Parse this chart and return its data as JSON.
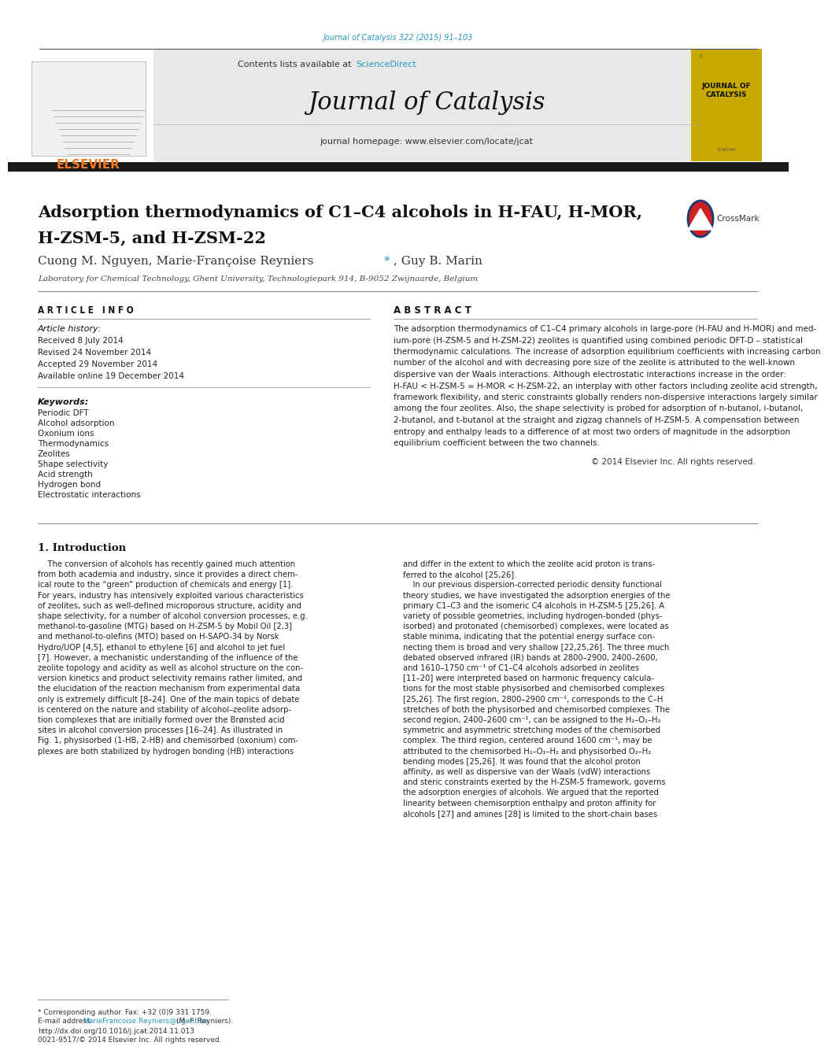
{
  "page_width": 9.92,
  "page_height": 13.23,
  "background_color": "#ffffff",
  "top_journal_ref": "Journal of Catalysis 322 (2015) 91–103",
  "top_journal_ref_color": "#2596be",
  "header_bg_color": "#e8e8e8",
  "elsevier_color": "#f47920",
  "journal_name": "Journal of Catalysis",
  "journal_homepage": "journal homepage: www.elsevier.com/locate/jcat",
  "contents_text": "Contents lists available at ",
  "science_direct": "ScienceDirect",
  "science_direct_color": "#2596be",
  "article_title_line1": "Adsorption thermodynamics of C1–C4 alcohols in H-FAU, H-MOR,",
  "article_title_line2": "H-ZSM-5, and H-ZSM-22",
  "affiliation": "Laboratory for Chemical Technology, Ghent University, Technologiepark 914, B-9052 Zwijnaarde, Belgium",
  "article_info_header": "A R T I C L E   I N F O",
  "article_history_header": "Article history:",
  "article_history": [
    "Received 8 July 2014",
    "Revised 24 November 2014",
    "Accepted 29 November 2014",
    "Available online 19 December 2014"
  ],
  "keywords_header": "Keywords:",
  "keywords": [
    "Periodic DFT",
    "Alcohol adsorption",
    "Oxonium ions",
    "Thermodynamics",
    "Zeolites",
    "Shape selectivity",
    "Acid strength",
    "Hydrogen bond",
    "Electrostatic interactions"
  ],
  "abstract_header": "A B S T R A C T",
  "abstract_text": "The adsorption thermodynamics of C1–C4 primary alcohols in large-pore (H-FAU and H-MOR) and med-\nium-pore (H-ZSM-5 and H-ZSM-22) zeolites is quantified using combined periodic DFT-D – statistical\nthermodynamic calculations. The increase of adsorption equilibrium coefficients with increasing carbon\nnumber of the alcohol and with decreasing pore size of the zeolite is attributed to the well-known\ndispersive van der Waals interactions. Although electrostatic interactions increase in the order:\nH-FAU < H-ZSM-5 ≈ H-MOR < H-ZSM-22, an interplay with other factors including zeolite acid strength,\nframework flexibility, and steric constraints globally renders non-dispersive interactions largely similar\namong the four zeolites. Also, the shape selectivity is probed for adsorption of n-butanol, i-butanol,\n2-butanol, and t-butanol at the straight and zigzag channels of H-ZSM-5. A compensation between\nentropy and enthalpy leads to a difference of at most two orders of magnitude in the adsorption\nequilibrium coefficient between the two channels.",
  "copyright_text": "© 2014 Elsevier Inc. All rights reserved.",
  "section1_title": "1. Introduction",
  "intro_col1_lines": [
    "    The conversion of alcohols has recently gained much attention",
    "from both academia and industry, since it provides a direct chem-",
    "ical route to the “green” production of chemicals and energy [1].",
    "For years, industry has intensively exploited various characteristics",
    "of zeolites, such as well-defined microporous structure, acidity and",
    "shape selectivity, for a number of alcohol conversion processes, e.g.",
    "methanol-to-gasoline (MTG) based on H-ZSM-5 by Mobil Oil [2,3]",
    "and methanol-to-olefins (MTO) based on H-SAPO-34 by Norsk",
    "Hydro/UOP [4,5], ethanol to ethylene [6] and alcohol to jet fuel",
    "[7]. However, a mechanistic understanding of the influence of the",
    "zeolite topology and acidity as well as alcohol structure on the con-",
    "version kinetics and product selectivity remains rather limited, and",
    "the elucidation of the reaction mechanism from experimental data",
    "only is extremely difficult [8–24]. One of the main topics of debate",
    "is centered on the nature and stability of alcohol–zeolite adsorp-",
    "tion complexes that are initially formed over the Brønsted acid",
    "sites in alcohol conversion processes [16–24]. As illustrated in",
    "Fig. 1, physisorbed (1-HB, 2-HB) and chemisorbed (oxonium) com-",
    "plexes are both stabilized by hydrogen bonding (HB) interactions"
  ],
  "intro_col2_lines": [
    "and differ in the extent to which the zeolite acid proton is trans-",
    "ferred to the alcohol [25,26].",
    "    In our previous dispersion-corrected periodic density functional",
    "theory studies, we have investigated the adsorption energies of the",
    "primary C1–C3 and the isomeric C4 alcohols in H-ZSM-5 [25,26]. A",
    "variety of possible geometries, including hydrogen-bonded (phys-",
    "isorbed) and protonated (chemisorbed) complexes, were located as",
    "stable minima, indicating that the potential energy surface con-",
    "necting them is broad and very shallow [22,25,26]. The three much",
    "debated observed infrared (IR) bands at 2800–2900, 2400–2600,",
    "and 1610–1750 cm⁻¹ of C1–C4 alcohols adsorbed in zeolites",
    "[11–20] were interpreted based on harmonic frequency calcula-",
    "tions for the most stable physisorbed and chemisorbed complexes",
    "[25,26]. The first region, 2800–2900 cm⁻¹, corresponds to the C–H",
    "stretches of both the physisorbed and chemisorbed complexes. The",
    "second region, 2400–2600 cm⁻¹, can be assigned to the H₁–O₁–H₂",
    "symmetric and asymmetric stretching modes of the chemisorbed",
    "complex. The third region, centered around 1600 cm⁻¹, may be",
    "attributed to the chemisorbed H₁–O₁–H₂ and physisorbed O₂–H₂",
    "bending modes [25,26]. It was found that the alcohol proton",
    "affinity, as well as dispersive van der Waals (vdW) interactions",
    "and steric constraints exerted by the H-ZSM-5 framework, governs",
    "the adsorption energies of alcohols. We argued that the reported",
    "linearity between chemisorption enthalpy and proton affinity for",
    "alcohols [27] and amines [28] is limited to the short-chain bases"
  ],
  "footnote_star": "* Corresponding author. Fax: +32 (0)9 331 1759.",
  "footnote_email_pre": "E-mail address: ",
  "footnote_email": "MarieFrancoise.Reyniers@ugent.be",
  "footnote_email_post": " (M.-F. Reyniers).",
  "footnote_doi": "http://dx.doi.org/10.1016/j.jcat.2014.11.013",
  "footnote_issn": "0021-9517/© 2014 Elsevier Inc. All rights reserved."
}
